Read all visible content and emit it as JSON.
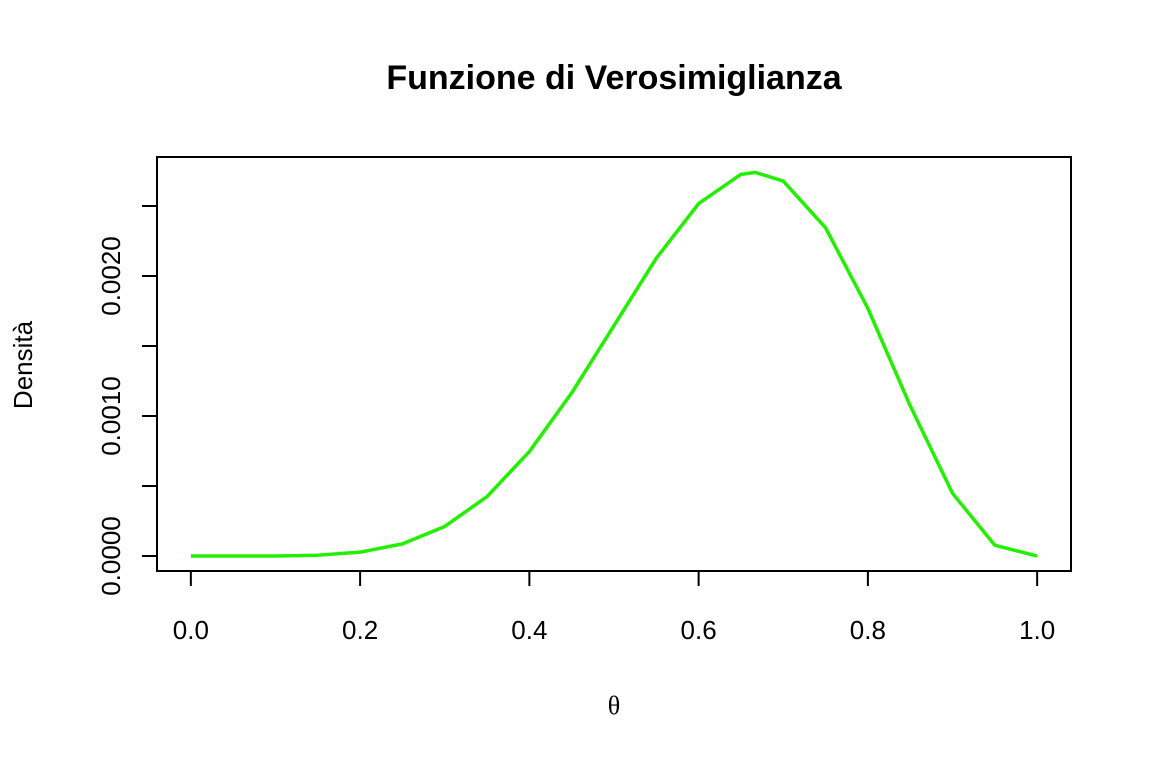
{
  "chart_data": {
    "type": "line",
    "title": "Funzione di Verosimiglianza",
    "x_label": "θ",
    "y_label": "Densità",
    "x": [
      0,
      0.05,
      0.1,
      0.15,
      0.2,
      0.25,
      0.3,
      0.35,
      0.4,
      0.45,
      0.5,
      0.55,
      0.6,
      0.65,
      0.667,
      0.7,
      0.75,
      0.8,
      0.85,
      0.9,
      0.95,
      1
    ],
    "series": [
      {
        "color": "#22f000",
        "values": [
          0,
          1e-08,
          6e-07,
          5.9e-06,
          2.76e-05,
          8.68e-05,
          0.000211,
          0.000425,
          0.000746,
          0.001165,
          0.001646,
          0.002127,
          0.002517,
          0.002726,
          0.00274,
          0.002678,
          0.002344,
          0.001768,
          0.001073,
          0.000448,
          7.7e-05,
          0
        ]
      }
    ],
    "xlim": [
      -0.04,
      1.04
    ],
    "ylim": [
      -0.000107,
      0.00285
    ],
    "xticks": [
      {
        "value": 0,
        "label": "0.0"
      },
      {
        "value": 0.2,
        "label": "0.2"
      },
      {
        "value": 0.4,
        "label": "0.4"
      },
      {
        "value": 0.6,
        "label": "0.6"
      },
      {
        "value": 0.8,
        "label": "0.8"
      },
      {
        "value": 1,
        "label": "1.0"
      }
    ],
    "yticks": [
      {
        "value": 0,
        "label": "0.0000"
      },
      {
        "value": 0.0005,
        "label": null
      },
      {
        "value": 0.001,
        "label": "0.0010"
      },
      {
        "value": 0.0015,
        "label": null
      },
      {
        "value": 0.002,
        "label": "0.0020"
      },
      {
        "value": 0.0025,
        "label": null
      }
    ],
    "grid": false
  }
}
